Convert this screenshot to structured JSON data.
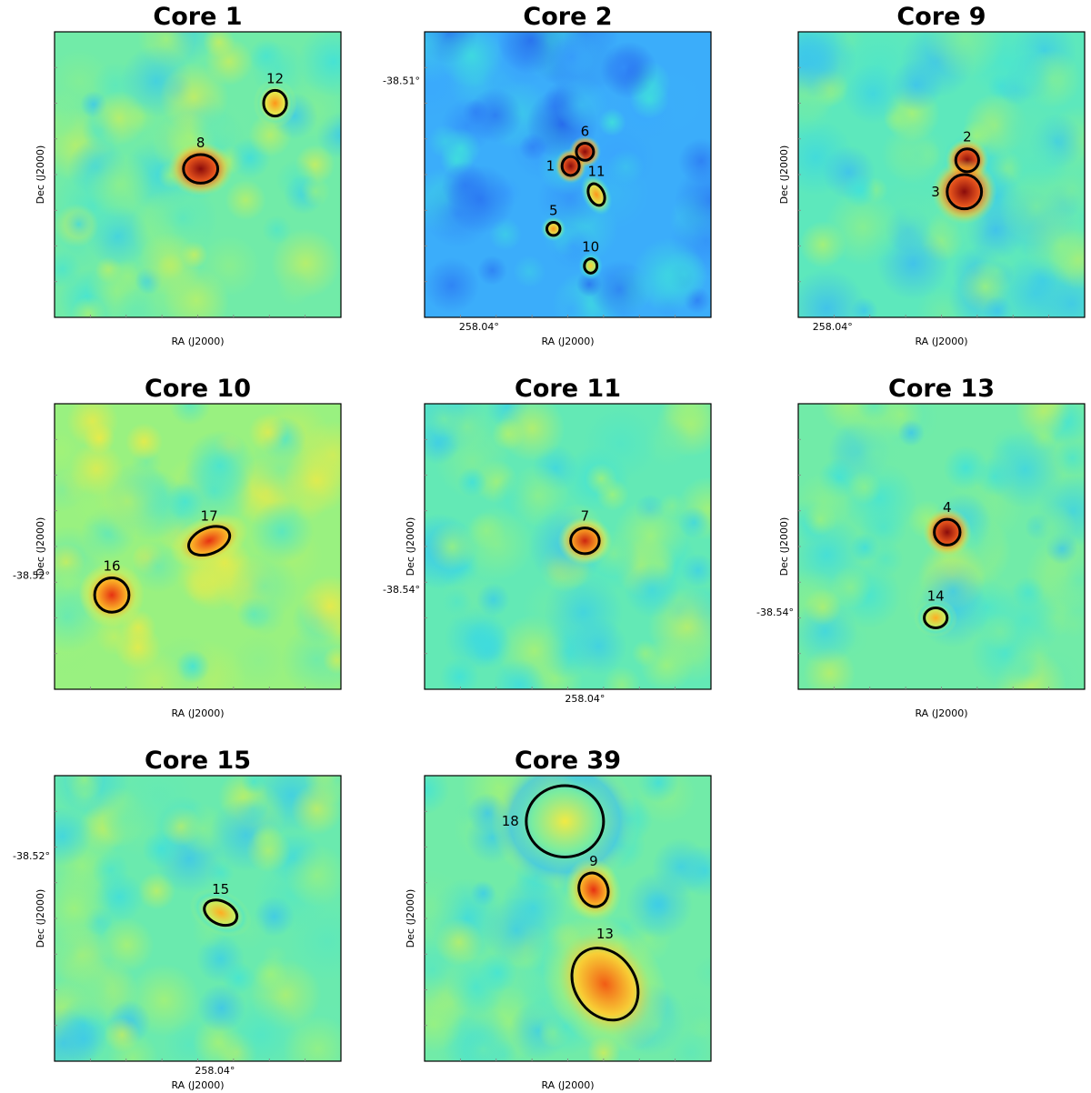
{
  "figure": {
    "label": "Core map panel grid"
  },
  "colormap": [
    "#1d4de6",
    "#3aa6ff",
    "#3fe3d9",
    "#9ff27a",
    "#ffe83a",
    "#ff9a1a",
    "#e83212",
    "#8a0b0b"
  ],
  "chart_data": [
    {
      "type": "heatmap",
      "title": "Core 1",
      "xlabel": "RA (J2000)",
      "ylabel": "Dec (J2000)",
      "xticks": [],
      "yticks": [],
      "background": 0.36,
      "sources": [
        {
          "label": "8",
          "u": 0.51,
          "v": 0.48,
          "rx": 0.06,
          "ry": 0.05,
          "angle": 0,
          "peak": 1.0
        },
        {
          "label": "12",
          "u": 0.77,
          "v": 0.25,
          "rx": 0.04,
          "ry": 0.045,
          "angle": 0,
          "peak": 0.72
        }
      ]
    },
    {
      "type": "heatmap",
      "title": "Core 2",
      "xlabel": "RA (J2000)",
      "ylabel": "",
      "xticks": [
        {
          "label": "258.04°",
          "u": 0.19
        }
      ],
      "yticks": [
        {
          "label": "-38.51°",
          "v": 0.17
        }
      ],
      "background": 0.16,
      "sources": [
        {
          "label": "6",
          "u": 0.56,
          "v": 0.42,
          "rx": 0.03,
          "ry": 0.03,
          "angle": 0,
          "peak": 1.0
        },
        {
          "label": "1",
          "u": 0.51,
          "v": 0.47,
          "rx": 0.03,
          "ry": 0.033,
          "angle": 0,
          "peak": 1.0
        },
        {
          "label": "11",
          "u": 0.6,
          "v": 0.57,
          "rx": 0.026,
          "ry": 0.04,
          "angle": -25,
          "peak": 0.72
        },
        {
          "label": "5",
          "u": 0.45,
          "v": 0.69,
          "rx": 0.023,
          "ry": 0.023,
          "angle": 0,
          "peak": 0.72
        },
        {
          "label": "10",
          "u": 0.58,
          "v": 0.82,
          "rx": 0.022,
          "ry": 0.025,
          "angle": 0,
          "peak": 0.62
        }
      ]
    },
    {
      "type": "heatmap",
      "title": "Core 9",
      "xlabel": "RA (J2000)",
      "ylabel": "Dec (J2000)",
      "xticks": [
        {
          "label": "258.04°",
          "u": 0.12
        }
      ],
      "yticks": [],
      "background": 0.33,
      "sources": [
        {
          "label": "2",
          "u": 0.59,
          "v": 0.45,
          "rx": 0.04,
          "ry": 0.04,
          "angle": 0,
          "peak": 1.0
        },
        {
          "label": "3",
          "u": 0.58,
          "v": 0.56,
          "rx": 0.06,
          "ry": 0.06,
          "angle": 0,
          "peak": 1.0
        }
      ]
    },
    {
      "type": "heatmap",
      "title": "Core 10",
      "xlabel": "RA (J2000)",
      "ylabel": "Dec (J2000)",
      "xticks": [],
      "yticks": [
        {
          "label": "-38.52°",
          "v": 0.6
        }
      ],
      "background": 0.42,
      "sources": [
        {
          "label": "17",
          "u": 0.54,
          "v": 0.48,
          "rx": 0.075,
          "ry": 0.045,
          "angle": -22,
          "peak": 0.86
        },
        {
          "label": "16",
          "u": 0.2,
          "v": 0.67,
          "rx": 0.06,
          "ry": 0.06,
          "angle": 0,
          "peak": 0.86
        }
      ]
    },
    {
      "type": "heatmap",
      "title": "Core 11",
      "xlabel": "",
      "ylabel": "Dec (J2000)",
      "xticks": [
        {
          "label": "258.04°",
          "u": 0.56
        }
      ],
      "yticks": [
        {
          "label": "-38.54°",
          "v": 0.65
        }
      ],
      "background": 0.34,
      "sources": [
        {
          "label": "7",
          "u": 0.56,
          "v": 0.48,
          "rx": 0.05,
          "ry": 0.045,
          "angle": 0,
          "peak": 0.9
        }
      ]
    },
    {
      "type": "heatmap",
      "title": "Core 13",
      "xlabel": "RA (J2000)",
      "ylabel": "Dec (J2000)",
      "xticks": [],
      "yticks": [
        {
          "label": "-38.54°",
          "v": 0.73
        }
      ],
      "background": 0.36,
      "sources": [
        {
          "label": "4",
          "u": 0.52,
          "v": 0.45,
          "rx": 0.045,
          "ry": 0.045,
          "angle": 0,
          "peak": 1.0
        },
        {
          "label": "14",
          "u": 0.48,
          "v": 0.75,
          "rx": 0.04,
          "ry": 0.035,
          "angle": 0,
          "peak": 0.68
        }
      ]
    },
    {
      "type": "heatmap",
      "title": "Core 15",
      "xlabel": "RA (J2000)",
      "ylabel": "Dec (J2000)",
      "xticks": [
        {
          "label": "258.04°",
          "u": 0.56
        }
      ],
      "yticks": [
        {
          "label": "-38.52°",
          "v": 0.28
        }
      ],
      "background": 0.35,
      "sources": [
        {
          "label": "15",
          "u": 0.58,
          "v": 0.48,
          "rx": 0.06,
          "ry": 0.04,
          "angle": 25,
          "peak": 0.68
        }
      ]
    },
    {
      "type": "heatmap",
      "title": "Core 39",
      "xlabel": "RA (J2000)",
      "ylabel": "Dec (J2000)",
      "xticks": [],
      "yticks": [],
      "background": 0.36,
      "sources": [
        {
          "label": "18",
          "u": 0.49,
          "v": 0.16,
          "rx": 0.135,
          "ry": 0.125,
          "angle": 0,
          "peak": 0.55
        },
        {
          "label": "9",
          "u": 0.59,
          "v": 0.4,
          "rx": 0.05,
          "ry": 0.06,
          "angle": -20,
          "peak": 0.86
        },
        {
          "label": "13",
          "u": 0.63,
          "v": 0.73,
          "rx": 0.105,
          "ry": 0.135,
          "angle": -35,
          "peak": 0.8
        }
      ]
    }
  ]
}
